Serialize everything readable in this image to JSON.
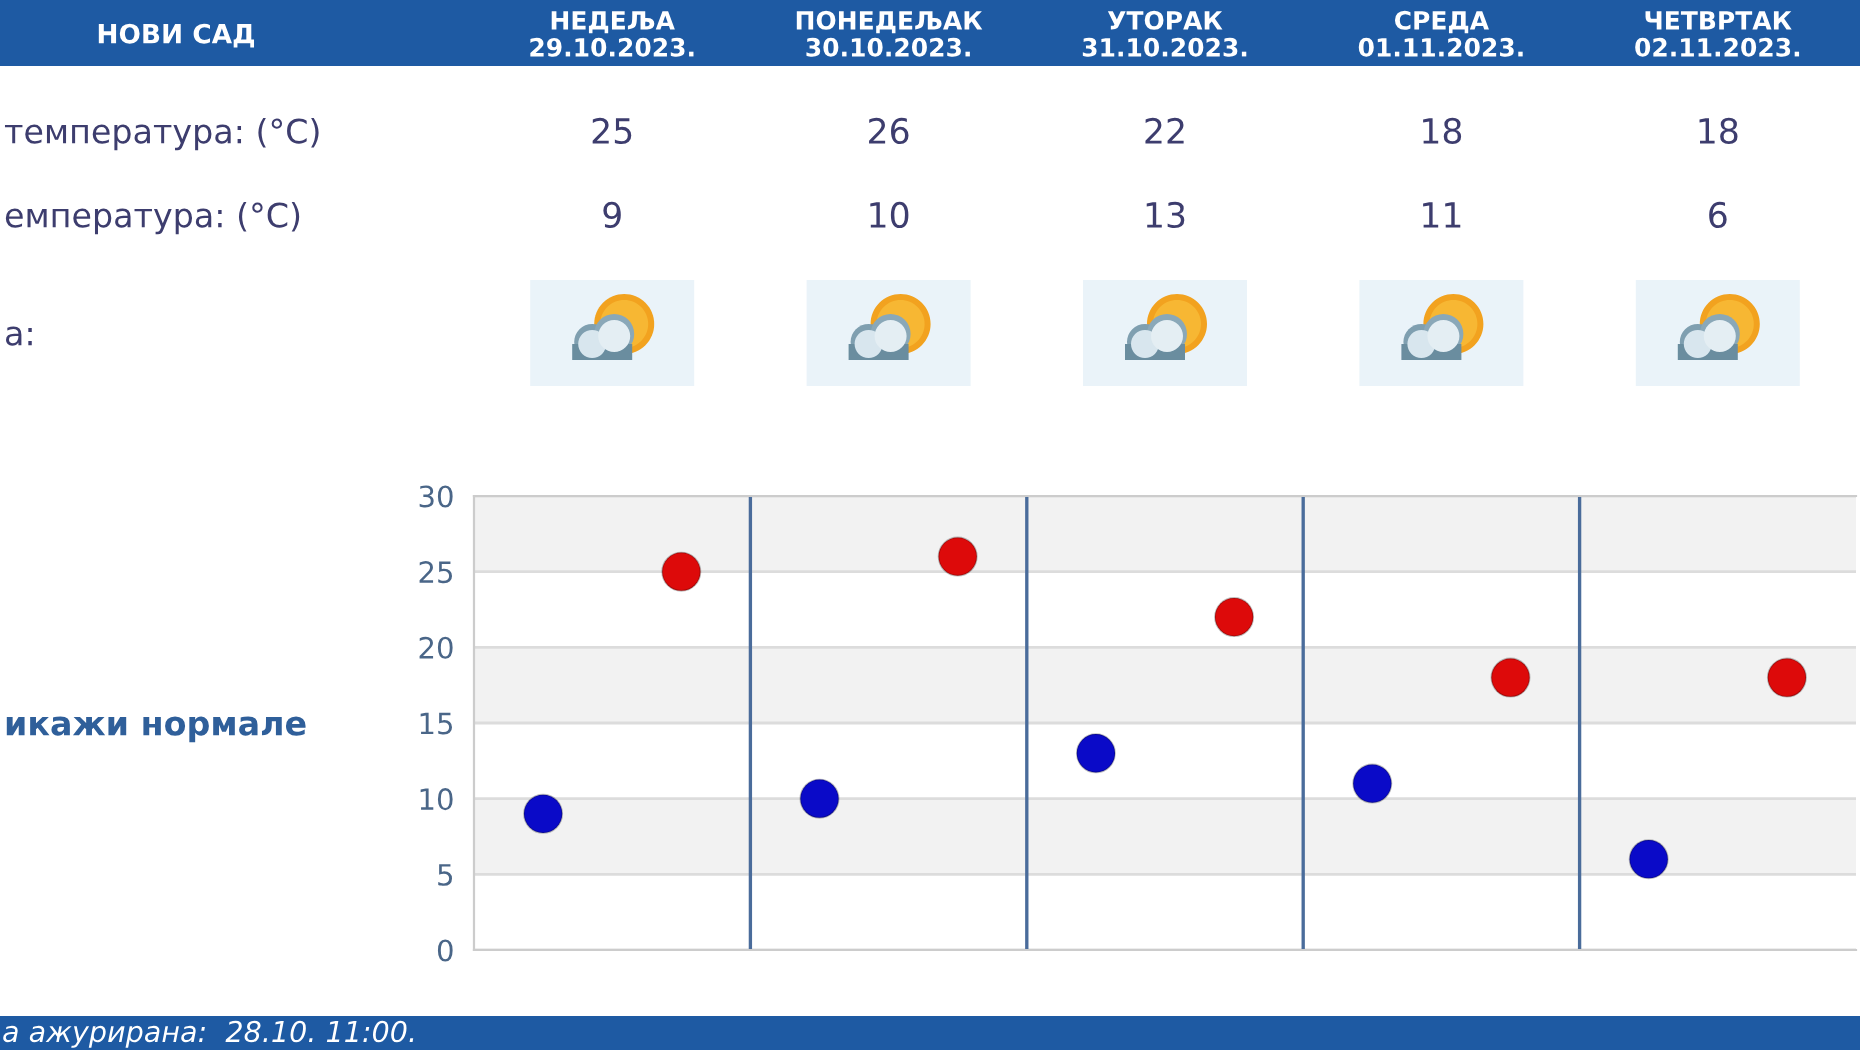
{
  "chart_data": {
    "type": "scatter",
    "title": "НОВИ САД",
    "categories": [
      null,
      null,
      null,
      null,
      null
    ],
    "series": [
      {
        "color": "#0a0ac8",
        "values": [
          9,
          10,
          13,
          11,
          6
        ]
      },
      {
        "color": "#dd0a0a",
        "values": [
          25,
          26,
          22,
          18,
          18
        ]
      }
    ],
    "ylim": [
      0,
      30
    ],
    "yticks": [
      0,
      5,
      10,
      15,
      20,
      25,
      30
    ],
    "bands": [
      {
        "axis": "y",
        "from": 25,
        "to": 30,
        "color": "#f2f2f2"
      },
      {
        "axis": "y",
        "from": 15,
        "to": 20,
        "color": "#f2f2f2"
      },
      {
        "axis": "y",
        "from": 5,
        "to": 10,
        "color": "#f2f2f2"
      }
    ],
    "grid": true,
    "marker": "circle",
    "data_labels": true,
    "annotations": [
      "НЕДЕЉА\n29.10.2023.",
      "ПОНЕДЕЉАК\n30.10.2023.",
      "УТОРАК\n31.10.2023.",
      "СРЕДА\n01.11.2023.",
      "ЧЕТВРТАК\n02.11.2023.",
      "температура: (°C)",
      "емпература: (°C)",
      "а:",
      "икажи нормале",
      "а ажурирана:  28.10. 11:00."
    ]
  }
}
